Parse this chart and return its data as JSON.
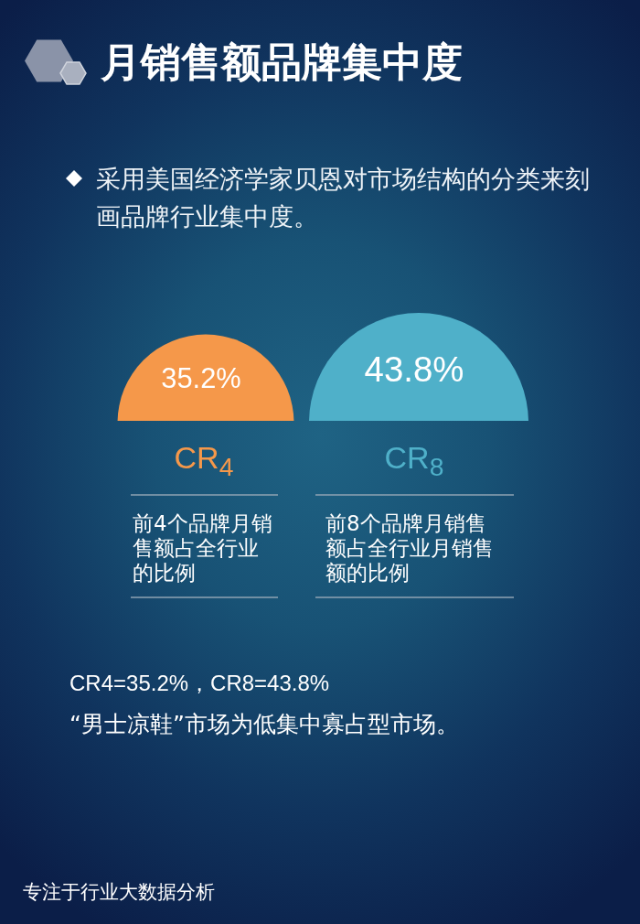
{
  "chart_data": {
    "type": "other",
    "title": "月销售额品牌集中度",
    "subtitle": "采用美国经济学家贝恩对市场结构的分类来刻画品牌行业集中度。",
    "categories": [
      "CR$_{4}$",
      "CR$_{8}$"
    ],
    "values": [
      35.2,
      43.8
    ],
    "value_labels": [
      "35.2%",
      "43.8%"
    ],
    "colors": [
      "#f5984a",
      "#4fb0c9"
    ],
    "annotations": [
      "前4个品牌月销售额占全行业的比例",
      "前8个品牌月销售额占全行业月销售额的比例",
      "CR4=35.2%，CR8=43.8%",
      "“男士凉鞋”市场为低集中寡占型市场。",
      "专注于行业大数据分析"
    ]
  }
}
